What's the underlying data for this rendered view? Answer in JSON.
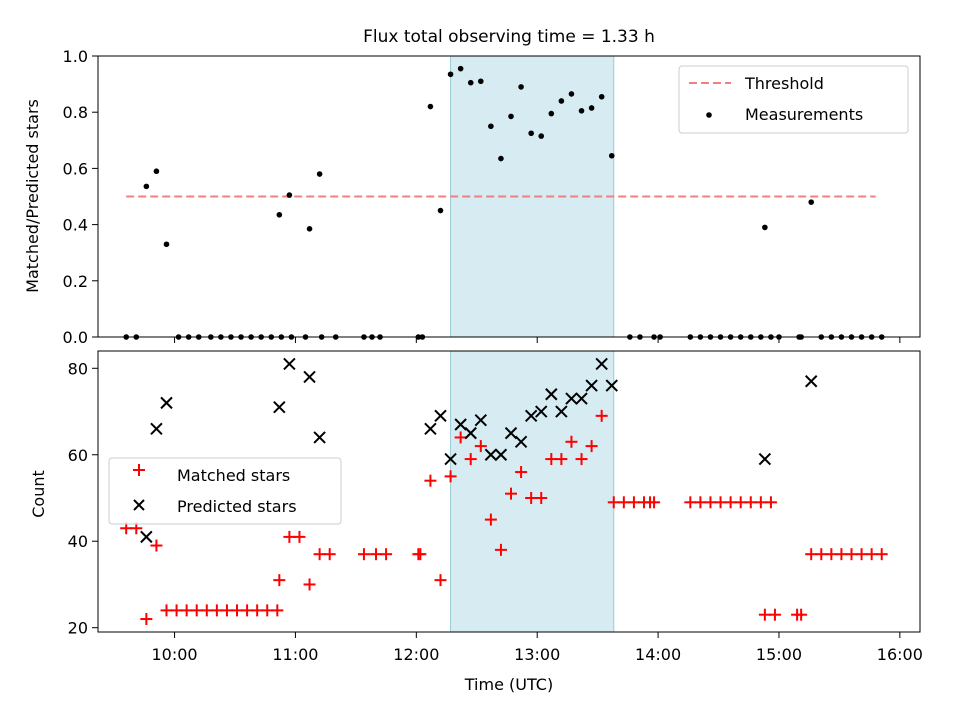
{
  "chart_data": [
    {
      "type": "scatter",
      "title": "Flux total observing time = 1.33 h",
      "xlabel": "",
      "ylabel": "Matched/Predicted stars",
      "xlim": [
        "09:22",
        "16:10"
      ],
      "ylim": [
        0,
        1.0
      ],
      "yticks": [
        "0.0",
        "0.2",
        "0.4",
        "0.6",
        "0.8",
        "1.0"
      ],
      "grid": false,
      "legend": "top-right",
      "shaded_region": [
        "12:17",
        "13:38"
      ],
      "threshold": {
        "name": "Threshold",
        "value": 0.5,
        "x": [
          "09:36",
          "15:48"
        ],
        "color": "#f08080"
      },
      "series": [
        {
          "name": "Measurements",
          "color": "#000000",
          "points": [
            [
              "09:36",
              0.0
            ],
            [
              "09:41",
              0.0
            ],
            [
              "09:46",
              0.536
            ],
            [
              "09:51",
              0.59
            ],
            [
              "09:56",
              0.33
            ],
            [
              "10:02",
              0.0
            ],
            [
              "10:07",
              0.0
            ],
            [
              "10:12",
              0.0
            ],
            [
              "10:18",
              0.0
            ],
            [
              "10:23",
              0.0
            ],
            [
              "10:28",
              0.0
            ],
            [
              "10:33",
              0.0
            ],
            [
              "10:38",
              0.0
            ],
            [
              "10:43",
              0.0
            ],
            [
              "10:48",
              0.0
            ],
            [
              "10:53",
              0.0
            ],
            [
              "10:58",
              0.0
            ],
            [
              "11:05",
              0.0
            ],
            [
              "11:13",
              0.0
            ],
            [
              "10:52",
              0.435
            ],
            [
              "10:57",
              0.505
            ],
            [
              "11:07",
              0.385
            ],
            [
              "11:12",
              0.58
            ],
            [
              "11:20",
              0.0
            ],
            [
              "11:34",
              0.0
            ],
            [
              "11:38",
              0.0
            ],
            [
              "11:42",
              0.0
            ],
            [
              "12:01",
              0.0
            ],
            [
              "12:03",
              0.0
            ],
            [
              "12:07",
              0.82
            ],
            [
              "12:12",
              0.45
            ],
            [
              "12:17",
              0.935
            ],
            [
              "12:22",
              0.955
            ],
            [
              "12:27",
              0.905
            ],
            [
              "12:32",
              0.91
            ],
            [
              "12:37",
              0.75
            ],
            [
              "12:42",
              0.635
            ],
            [
              "12:47",
              0.785
            ],
            [
              "12:52",
              0.89
            ],
            [
              "12:57",
              0.725
            ],
            [
              "13:02",
              0.715
            ],
            [
              "13:07",
              0.795
            ],
            [
              "13:12",
              0.84
            ],
            [
              "13:17",
              0.865
            ],
            [
              "13:22",
              0.805
            ],
            [
              "13:27",
              0.815
            ],
            [
              "13:32",
              0.855
            ],
            [
              "13:37",
              0.645
            ],
            [
              "13:46",
              0.0
            ],
            [
              "13:51",
              0.0
            ],
            [
              "13:58",
              0.0
            ],
            [
              "14:01",
              0.0
            ],
            [
              "14:16",
              0.0
            ],
            [
              "14:21",
              0.0
            ],
            [
              "14:26",
              0.0
            ],
            [
              "14:31",
              0.0
            ],
            [
              "14:36",
              0.0
            ],
            [
              "14:41",
              0.0
            ],
            [
              "14:46",
              0.0
            ],
            [
              "14:51",
              0.0
            ],
            [
              "14:56",
              0.0
            ],
            [
              "15:00",
              0.0
            ],
            [
              "14:53",
              0.39
            ],
            [
              "15:10",
              0.0
            ],
            [
              "15:11",
              0.0
            ],
            [
              "15:16",
              0.48
            ],
            [
              "15:21",
              0.0
            ],
            [
              "15:26",
              0.0
            ],
            [
              "15:31",
              0.0
            ],
            [
              "15:36",
              0.0
            ],
            [
              "15:41",
              0.0
            ],
            [
              "15:46",
              0.0
            ],
            [
              "15:51",
              0.0
            ]
          ]
        }
      ]
    },
    {
      "type": "scatter",
      "title": "",
      "xlabel": "Time (UTC)",
      "ylabel": "Count",
      "xlim": [
        "09:22",
        "16:10"
      ],
      "xticks": [
        "10:00",
        "11:00",
        "12:00",
        "13:00",
        "14:00",
        "15:00",
        "16:00"
      ],
      "ylim": [
        19,
        84
      ],
      "yticks": [
        "20",
        "40",
        "60",
        "80"
      ],
      "grid": false,
      "legend": "center-left",
      "shaded_region": [
        "12:17",
        "13:38"
      ],
      "series": [
        {
          "name": "Matched stars",
          "marker": "+",
          "color": "#ff0000",
          "points": [
            [
              "09:36",
              43
            ],
            [
              "09:41",
              43
            ],
            [
              "09:46",
              22
            ],
            [
              "09:51",
              39
            ],
            [
              "09:56",
              24
            ],
            [
              "10:01",
              24
            ],
            [
              "10:06",
              24
            ],
            [
              "10:11",
              24
            ],
            [
              "10:16",
              24
            ],
            [
              "10:21",
              24
            ],
            [
              "10:26",
              24
            ],
            [
              "10:31",
              24
            ],
            [
              "10:36",
              24
            ],
            [
              "10:41",
              24
            ],
            [
              "10:46",
              24
            ],
            [
              "10:51",
              24
            ],
            [
              "10:52",
              31
            ],
            [
              "10:57",
              41
            ],
            [
              "11:02",
              41
            ],
            [
              "11:07",
              30
            ],
            [
              "11:12",
              37
            ],
            [
              "11:17",
              37
            ],
            [
              "11:34",
              37
            ],
            [
              "11:40",
              37
            ],
            [
              "11:45",
              37
            ],
            [
              "12:01",
              37
            ],
            [
              "12:02",
              37
            ],
            [
              "12:07",
              54
            ],
            [
              "12:12",
              31
            ],
            [
              "12:17",
              55
            ],
            [
              "12:22",
              64
            ],
            [
              "12:27",
              59
            ],
            [
              "12:32",
              62
            ],
            [
              "12:37",
              45
            ],
            [
              "12:42",
              38
            ],
            [
              "12:47",
              51
            ],
            [
              "12:52",
              56
            ],
            [
              "12:57",
              50
            ],
            [
              "13:02",
              50
            ],
            [
              "13:07",
              59
            ],
            [
              "13:12",
              59
            ],
            [
              "13:17",
              63
            ],
            [
              "13:22",
              59
            ],
            [
              "13:27",
              62
            ],
            [
              "13:32",
              69
            ],
            [
              "13:38",
              49
            ],
            [
              "13:43",
              49
            ],
            [
              "13:48",
              49
            ],
            [
              "13:53",
              49
            ],
            [
              "13:56",
              49
            ],
            [
              "13:58",
              49
            ],
            [
              "14:16",
              49
            ],
            [
              "14:21",
              49
            ],
            [
              "14:26",
              49
            ],
            [
              "14:31",
              49
            ],
            [
              "14:36",
              49
            ],
            [
              "14:41",
              49
            ],
            [
              "14:46",
              49
            ],
            [
              "14:51",
              49
            ],
            [
              "14:56",
              49
            ],
            [
              "14:53",
              23
            ],
            [
              "14:58",
              23
            ],
            [
              "15:09",
              23
            ],
            [
              "15:11",
              23
            ],
            [
              "15:16",
              37
            ],
            [
              "15:21",
              37
            ],
            [
              "15:26",
              37
            ],
            [
              "15:31",
              37
            ],
            [
              "15:36",
              37
            ],
            [
              "15:41",
              37
            ],
            [
              "15:46",
              37
            ],
            [
              "15:51",
              37
            ]
          ]
        },
        {
          "name": "Predicted stars",
          "marker": "x",
          "color": "#000000",
          "points": [
            [
              "09:46",
              41
            ],
            [
              "09:51",
              66
            ],
            [
              "09:56",
              72
            ],
            [
              "10:52",
              71
            ],
            [
              "10:57",
              81
            ],
            [
              "11:07",
              78
            ],
            [
              "11:12",
              64
            ],
            [
              "12:07",
              66
            ],
            [
              "12:12",
              69
            ],
            [
              "12:17",
              59
            ],
            [
              "12:22",
              67
            ],
            [
              "12:27",
              65
            ],
            [
              "12:32",
              68
            ],
            [
              "12:37",
              60
            ],
            [
              "12:42",
              60
            ],
            [
              "12:47",
              65
            ],
            [
              "12:52",
              63
            ],
            [
              "12:57",
              69
            ],
            [
              "13:02",
              70
            ],
            [
              "13:07",
              74
            ],
            [
              "13:12",
              70
            ],
            [
              "13:17",
              73
            ],
            [
              "13:22",
              73
            ],
            [
              "13:27",
              76
            ],
            [
              "13:32",
              81
            ],
            [
              "13:37",
              76
            ],
            [
              "14:53",
              59
            ],
            [
              "15:16",
              77
            ]
          ]
        }
      ]
    }
  ]
}
